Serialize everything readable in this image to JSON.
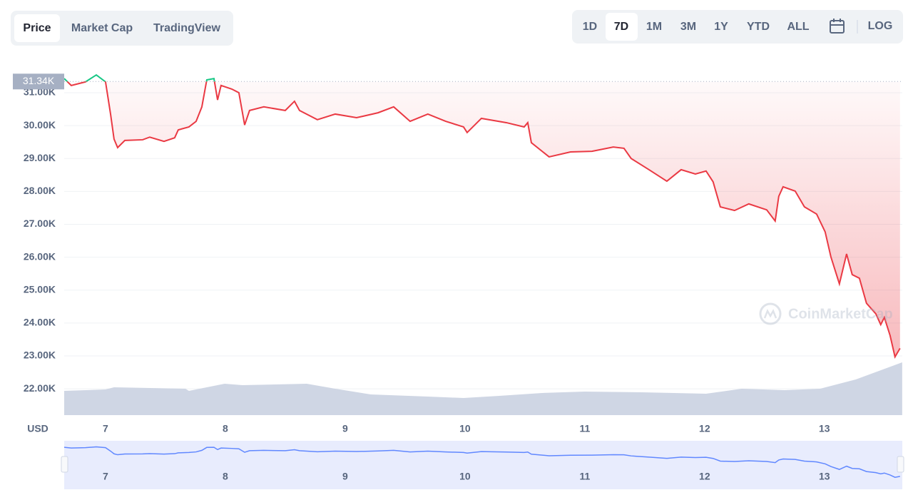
{
  "tabs": {
    "items": [
      "Price",
      "Market Cap",
      "TradingView"
    ],
    "active": 0
  },
  "ranges": {
    "items": [
      "1D",
      "7D",
      "1M",
      "3M",
      "1Y",
      "YTD",
      "ALL"
    ],
    "active": 1
  },
  "log_label": "LOG",
  "watermark": "CoinMarketCap",
  "chart_data": {
    "type": "line",
    "axis_label": "USD",
    "x": [
      6.655,
      6.714,
      6.833,
      6.923,
      7.0,
      7.042,
      7.071,
      7.101,
      7.161,
      7.31,
      7.369,
      7.488,
      7.577,
      7.607,
      7.696,
      7.756,
      7.804,
      7.845,
      7.905,
      7.935,
      7.964,
      8.054,
      8.113,
      8.161,
      8.202,
      8.321,
      8.5,
      8.577,
      8.619,
      8.768,
      8.917,
      9.095,
      9.274,
      9.405,
      9.542,
      9.69,
      9.839,
      9.988,
      10.018,
      10.137,
      10.345,
      10.494,
      10.524,
      10.554,
      10.702,
      10.881,
      11.06,
      11.238,
      11.327,
      11.387,
      11.536,
      11.685,
      11.804,
      11.923,
      12.012,
      12.071,
      12.131,
      12.25,
      12.369,
      12.518,
      12.589,
      12.619,
      12.655,
      12.756,
      12.833,
      12.935,
      13.006,
      13.054,
      13.125,
      13.185,
      13.232,
      13.292,
      13.351,
      13.429,
      13.47,
      13.5,
      13.548,
      13.589,
      13.631
    ],
    "series": [
      {
        "name": "Price",
        "color": "#ea3943",
        "above_color": "#16c784",
        "values": [
          31430,
          31220,
          31330,
          31540,
          31330,
          30350,
          29590,
          29330,
          29550,
          29570,
          29650,
          29520,
          29630,
          29870,
          29960,
          30130,
          30570,
          31390,
          31430,
          30780,
          31220,
          31110,
          31000,
          30020,
          30460,
          30570,
          30460,
          30740,
          30460,
          30180,
          30350,
          30240,
          30390,
          30570,
          30130,
          30350,
          30130,
          29960,
          29790,
          30220,
          30090,
          29960,
          30090,
          29480,
          29050,
          29200,
          29220,
          29350,
          29310,
          29000,
          28660,
          28310,
          28660,
          28530,
          28620,
          28290,
          27530,
          27420,
          27620,
          27440,
          27100,
          27850,
          28140,
          28010,
          27530,
          27310,
          26770,
          26010,
          25190,
          26100,
          25470,
          25360,
          24600,
          24280,
          23950,
          24170,
          23620,
          22970,
          23230
        ]
      }
    ],
    "volume": {
      "color": "#cfd6e4",
      "x": [
        6.655,
        7.0,
        7.071,
        7.667,
        7.696,
        7.845,
        7.994,
        8.143,
        8.679,
        8.917,
        9.214,
        9.69,
        9.988,
        10.286,
        10.643,
        11.0,
        11.476,
        12.012,
        12.31,
        12.667,
        12.964,
        13.262,
        13.649
      ],
      "values": [
        34,
        36,
        39,
        37,
        34,
        39,
        44,
        42,
        44,
        37,
        29,
        26,
        24,
        27,
        31,
        33,
        32,
        30,
        37,
        35,
        37,
        50,
        74
      ]
    },
    "baseline": {
      "value": 31340,
      "label": "31.34K"
    },
    "xlim": [
      6.655,
      13.65
    ],
    "xticks": [
      7,
      8,
      9,
      10,
      11,
      12,
      13
    ],
    "ylim": [
      21200,
      31650
    ],
    "yticks": [
      {
        "value": 22000,
        "label": "22.00K"
      },
      {
        "value": 23000,
        "label": "23.00K"
      },
      {
        "value": 24000,
        "label": "24.00K"
      },
      {
        "value": 25000,
        "label": "25.00K"
      },
      {
        "value": 26000,
        "label": "26.00K"
      },
      {
        "value": 27000,
        "label": "27.00K"
      },
      {
        "value": 28000,
        "label": "28.00K"
      },
      {
        "value": 29000,
        "label": "29.00K"
      },
      {
        "value": 30000,
        "label": "30.00K"
      },
      {
        "value": 31000,
        "label": "31.00K"
      }
    ],
    "grid": true
  }
}
